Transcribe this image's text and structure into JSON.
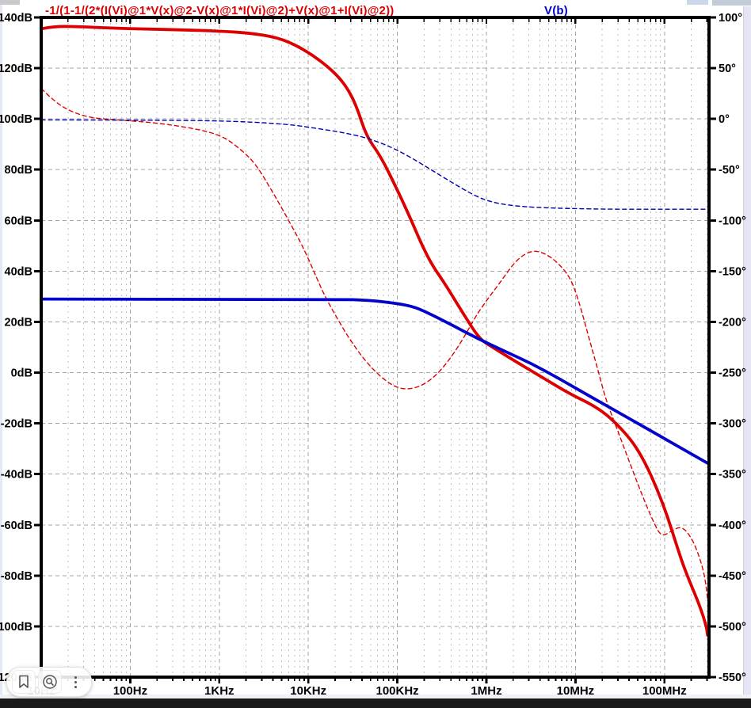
{
  "titles": {
    "red_expression": "-1/(1-1/(2*(I(Vi)@1*V(x)@2-V(x)@1*I(Vi)@2)+V(x)@1+I(Vi)@2))",
    "blue_trace": "V(b)"
  },
  "colors": {
    "red_trace": "#dd0000",
    "blue_trace": "#0202cc",
    "blue_phase": "#0000b2",
    "red_phase": "#e00000",
    "grid_major": "#a4a4a4",
    "grid_minor": "#bfbfbf",
    "axis": "#000000"
  },
  "toolbar": {
    "buttons": [
      {
        "icon": "bookmark-icon"
      },
      {
        "icon": "zoom-search-icon"
      },
      {
        "icon": "more-vertical-icon"
      }
    ]
  },
  "chart_data": {
    "type": "line",
    "x_axis": {
      "scale": "log",
      "range_hz": [
        10,
        316227766
      ],
      "tick_freqs": [
        10,
        100,
        1000,
        10000,
        100000,
        1000000,
        10000000,
        100000000
      ],
      "tick_labels": [
        "10Hz",
        "100Hz",
        "1KHz",
        "10KHz",
        "100KHz",
        "1MHz",
        "10MHz",
        "100MHz"
      ]
    },
    "left_axis": {
      "unit": "dB",
      "range": [
        -120,
        140
      ],
      "tick_values": [
        140,
        120,
        100,
        80,
        60,
        40,
        20,
        0,
        -20,
        -40,
        -60,
        -80,
        -100,
        -120
      ],
      "tick_labels": [
        "140dB",
        "120dB",
        "100dB",
        "80dB",
        "60dB",
        "40dB",
        "20dB",
        "0dB",
        "-20dB",
        "-40dB",
        "-60dB",
        "-80dB",
        "-100dB",
        "-120dB"
      ]
    },
    "right_axis": {
      "unit": "degrees",
      "range": [
        -550,
        100
      ],
      "tick_values": [
        100,
        50,
        0,
        -50,
        -100,
        -150,
        -200,
        -250,
        -300,
        -350,
        -400,
        -450,
        -500,
        -550
      ],
      "tick_labels": [
        "100°",
        "50°",
        "0°",
        "-50°",
        "-100°",
        "-150°",
        "-200°",
        "-250°",
        "-300°",
        "-350°",
        "-400°",
        "-450°",
        "-500°",
        "-550°"
      ],
      "grid": true,
      "legend_position": "top"
    },
    "series": [
      {
        "name": "expression-gain",
        "axis": "left",
        "style": "solid",
        "color": "#dd0000",
        "width": 3.8,
        "points": [
          [
            10,
            135.5
          ],
          [
            14,
            136.5
          ],
          [
            25,
            136.4
          ],
          [
            60,
            135.8
          ],
          [
            150,
            135.4
          ],
          [
            400,
            135.1
          ],
          [
            1000,
            134.6
          ],
          [
            2000,
            134.0
          ],
          [
            4500,
            132.2
          ],
          [
            8300,
            128.1
          ],
          [
            15000,
            121.9
          ],
          [
            22000,
            116.5
          ],
          [
            28000,
            111.6
          ],
          [
            35000,
            104.7
          ],
          [
            45000,
            93.1
          ],
          [
            65000,
            85.3
          ],
          [
            100000,
            72.0
          ],
          [
            137000,
            61.6
          ],
          [
            190000,
            50.0
          ],
          [
            250000,
            42.0
          ],
          [
            330000,
            35.9
          ],
          [
            530000,
            24.1
          ],
          [
            830000,
            13.4
          ],
          [
            1130000,
            10.3
          ],
          [
            2200000,
            4.1
          ],
          [
            4400000,
            -2.2
          ],
          [
            8700000,
            -8.4
          ],
          [
            17000000,
            -13.4
          ],
          [
            28000000,
            -19.4
          ],
          [
            52000000,
            -30.3
          ],
          [
            96000000,
            -50.9
          ],
          [
            155000000,
            -74.1
          ],
          [
            190000000,
            -82.0
          ],
          [
            250000000,
            -92.0
          ],
          [
            295000000,
            -100.0
          ],
          [
            305000000,
            -103.5
          ]
        ]
      },
      {
        "name": "expression-phase",
        "axis": "right",
        "style": "dashed",
        "color": "#e00000",
        "width": 1.4,
        "points": [
          [
            10,
            30
          ],
          [
            14.5,
            16
          ],
          [
            22,
            7
          ],
          [
            36,
            1
          ],
          [
            74,
            -1
          ],
          [
            207,
            -4
          ],
          [
            577,
            -10
          ],
          [
            1100,
            -17
          ],
          [
            1800,
            -31
          ],
          [
            2600,
            -45
          ],
          [
            4100,
            -74
          ],
          [
            6200,
            -102
          ],
          [
            9200,
            -130
          ],
          [
            13800,
            -166
          ],
          [
            17000,
            -182
          ],
          [
            21600,
            -198
          ],
          [
            28000,
            -215
          ],
          [
            43000,
            -238
          ],
          [
            68000,
            -256
          ],
          [
            103000,
            -266
          ],
          [
            155000,
            -266
          ],
          [
            234000,
            -258
          ],
          [
            352000,
            -242
          ],
          [
            530000,
            -219
          ],
          [
            750000,
            -195
          ],
          [
            1020000,
            -178
          ],
          [
            1400000,
            -162
          ],
          [
            2200000,
            -138
          ],
          [
            3300000,
            -129
          ],
          [
            4700000,
            -133
          ],
          [
            6400000,
            -142
          ],
          [
            8700000,
            -156
          ],
          [
            10700000,
            -177
          ],
          [
            13700000,
            -211
          ],
          [
            17200000,
            -242
          ],
          [
            22000000,
            -277
          ],
          [
            27000000,
            -297
          ],
          [
            36600000,
            -328
          ],
          [
            55000000,
            -369
          ],
          [
            75000000,
            -397
          ],
          [
            92000000,
            -412
          ],
          [
            120000000,
            -406
          ],
          [
            155000000,
            -401
          ],
          [
            200000000,
            -412
          ],
          [
            246000000,
            -431
          ],
          [
            277000000,
            -447
          ],
          [
            295000000,
            -462
          ],
          [
            305000000,
            -474
          ]
        ]
      },
      {
        "name": "vb-gain",
        "axis": "left",
        "style": "solid",
        "color": "#0202cc",
        "width": 3.8,
        "points": [
          [
            10,
            29
          ],
          [
            20000,
            29
          ],
          [
            50000,
            28.5
          ],
          [
            100000,
            27.3
          ],
          [
            150000,
            26.0
          ],
          [
            200000,
            24.3
          ],
          [
            400000,
            19.0
          ],
          [
            800000,
            13.4
          ],
          [
            1600000,
            8.5
          ],
          [
            3200000,
            3.6
          ],
          [
            6300000,
            -2.0
          ],
          [
            12500000,
            -8.0
          ],
          [
            25000000,
            -14.0
          ],
          [
            50000000,
            -20.0
          ],
          [
            100000000,
            -26.0
          ],
          [
            200000000,
            -32.0
          ],
          [
            316000000,
            -36.0
          ]
        ]
      },
      {
        "name": "vb-phase",
        "axis": "right",
        "style": "dashed",
        "color": "#0000b2",
        "width": 1.4,
        "points": [
          [
            10,
            -1
          ],
          [
            300,
            -1.2
          ],
          [
            1600,
            -2.3
          ],
          [
            6400,
            -5.5
          ],
          [
            12400,
            -9.4
          ],
          [
            24500,
            -13.3
          ],
          [
            49000,
            -19.5
          ],
          [
            96000,
            -29.7
          ],
          [
            190000,
            -44.5
          ],
          [
            380000,
            -61
          ],
          [
            750000,
            -76
          ],
          [
            1130000,
            -82
          ],
          [
            2100000,
            -86
          ],
          [
            5800000,
            -88
          ],
          [
            20000000,
            -89
          ],
          [
            100000000,
            -89
          ],
          [
            316000000,
            -89
          ]
        ]
      }
    ]
  }
}
